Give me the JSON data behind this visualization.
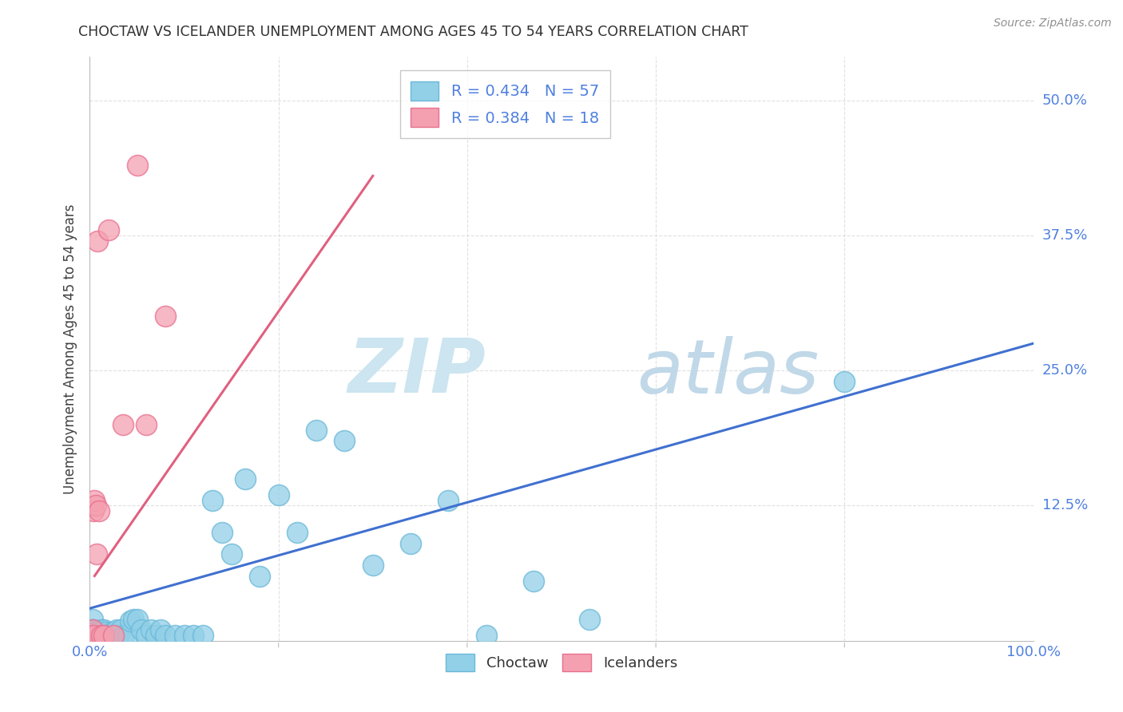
{
  "title": "CHOCTAW VS ICELANDER UNEMPLOYMENT AMONG AGES 45 TO 54 YEARS CORRELATION CHART",
  "source": "Source: ZipAtlas.com",
  "ylabel": "Unemployment Among Ages 45 to 54 years",
  "xlim": [
    0.0,
    1.0
  ],
  "ylim": [
    0.0,
    0.54
  ],
  "xticks": [
    0.0,
    0.2,
    0.4,
    0.6,
    0.8,
    1.0
  ],
  "xticklabels": [
    "0.0%",
    "",
    "",
    "",
    "",
    "100.0%"
  ],
  "yticks": [
    0.0,
    0.125,
    0.25,
    0.375,
    0.5
  ],
  "yticklabels": [
    "",
    "12.5%",
    "25.0%",
    "37.5%",
    "50.0%"
  ],
  "choctaw_color": "#92d0e8",
  "icelander_color": "#f4a0b0",
  "choctaw_edge_color": "#6ab8d8",
  "icelander_edge_color": "#e87090",
  "choctaw_R": 0.434,
  "choctaw_N": 57,
  "icelander_R": 0.384,
  "icelander_N": 18,
  "choctaw_scatter_x": [
    0.003,
    0.003,
    0.004,
    0.005,
    0.005,
    0.006,
    0.007,
    0.007,
    0.008,
    0.009,
    0.01,
    0.011,
    0.012,
    0.013,
    0.014,
    0.015,
    0.016,
    0.017,
    0.018,
    0.02,
    0.022,
    0.024,
    0.026,
    0.028,
    0.03,
    0.033,
    0.036,
    0.04,
    0.043,
    0.046,
    0.05,
    0.055,
    0.06,
    0.065,
    0.07,
    0.075,
    0.08,
    0.09,
    0.1,
    0.11,
    0.12,
    0.13,
    0.14,
    0.15,
    0.165,
    0.18,
    0.2,
    0.22,
    0.24,
    0.27,
    0.3,
    0.34,
    0.38,
    0.42,
    0.47,
    0.53,
    0.8
  ],
  "choctaw_scatter_y": [
    0.02,
    0.01,
    0.01,
    0.008,
    0.005,
    0.005,
    0.005,
    0.008,
    0.005,
    0.005,
    0.005,
    0.005,
    0.01,
    0.005,
    0.005,
    0.01,
    0.008,
    0.005,
    0.005,
    0.005,
    0.005,
    0.008,
    0.005,
    0.01,
    0.005,
    0.01,
    0.005,
    0.005,
    0.018,
    0.02,
    0.02,
    0.01,
    0.005,
    0.01,
    0.005,
    0.01,
    0.005,
    0.005,
    0.005,
    0.005,
    0.005,
    0.13,
    0.1,
    0.08,
    0.15,
    0.06,
    0.135,
    0.1,
    0.195,
    0.185,
    0.07,
    0.09,
    0.13,
    0.005,
    0.055,
    0.02,
    0.24
  ],
  "icelander_scatter_x": [
    0.003,
    0.003,
    0.003,
    0.004,
    0.004,
    0.005,
    0.006,
    0.007,
    0.008,
    0.01,
    0.012,
    0.015,
    0.02,
    0.025,
    0.035,
    0.05,
    0.06,
    0.08
  ],
  "icelander_scatter_y": [
    0.005,
    0.005,
    0.01,
    0.005,
    0.12,
    0.13,
    0.125,
    0.08,
    0.37,
    0.12,
    0.005,
    0.005,
    0.38,
    0.005,
    0.2,
    0.44,
    0.2,
    0.3
  ],
  "choctaw_line_x": [
    0.0,
    1.0
  ],
  "choctaw_line_y": [
    0.03,
    0.275
  ],
  "choctaw_line_color": "#4070d0",
  "icelander_line_x": [
    0.005,
    0.3
  ],
  "icelander_line_y": [
    0.06,
    0.43
  ],
  "icelander_line_color": "#e06080",
  "background_color": "#ffffff",
  "grid_color": "#e0e0e0",
  "watermark_zip_color": "#cce5f0",
  "watermark_atlas_color": "#c0d8e8",
  "title_color": "#303030",
  "source_color": "#909090",
  "tick_color": "#5080e0",
  "label_color": "#404040"
}
